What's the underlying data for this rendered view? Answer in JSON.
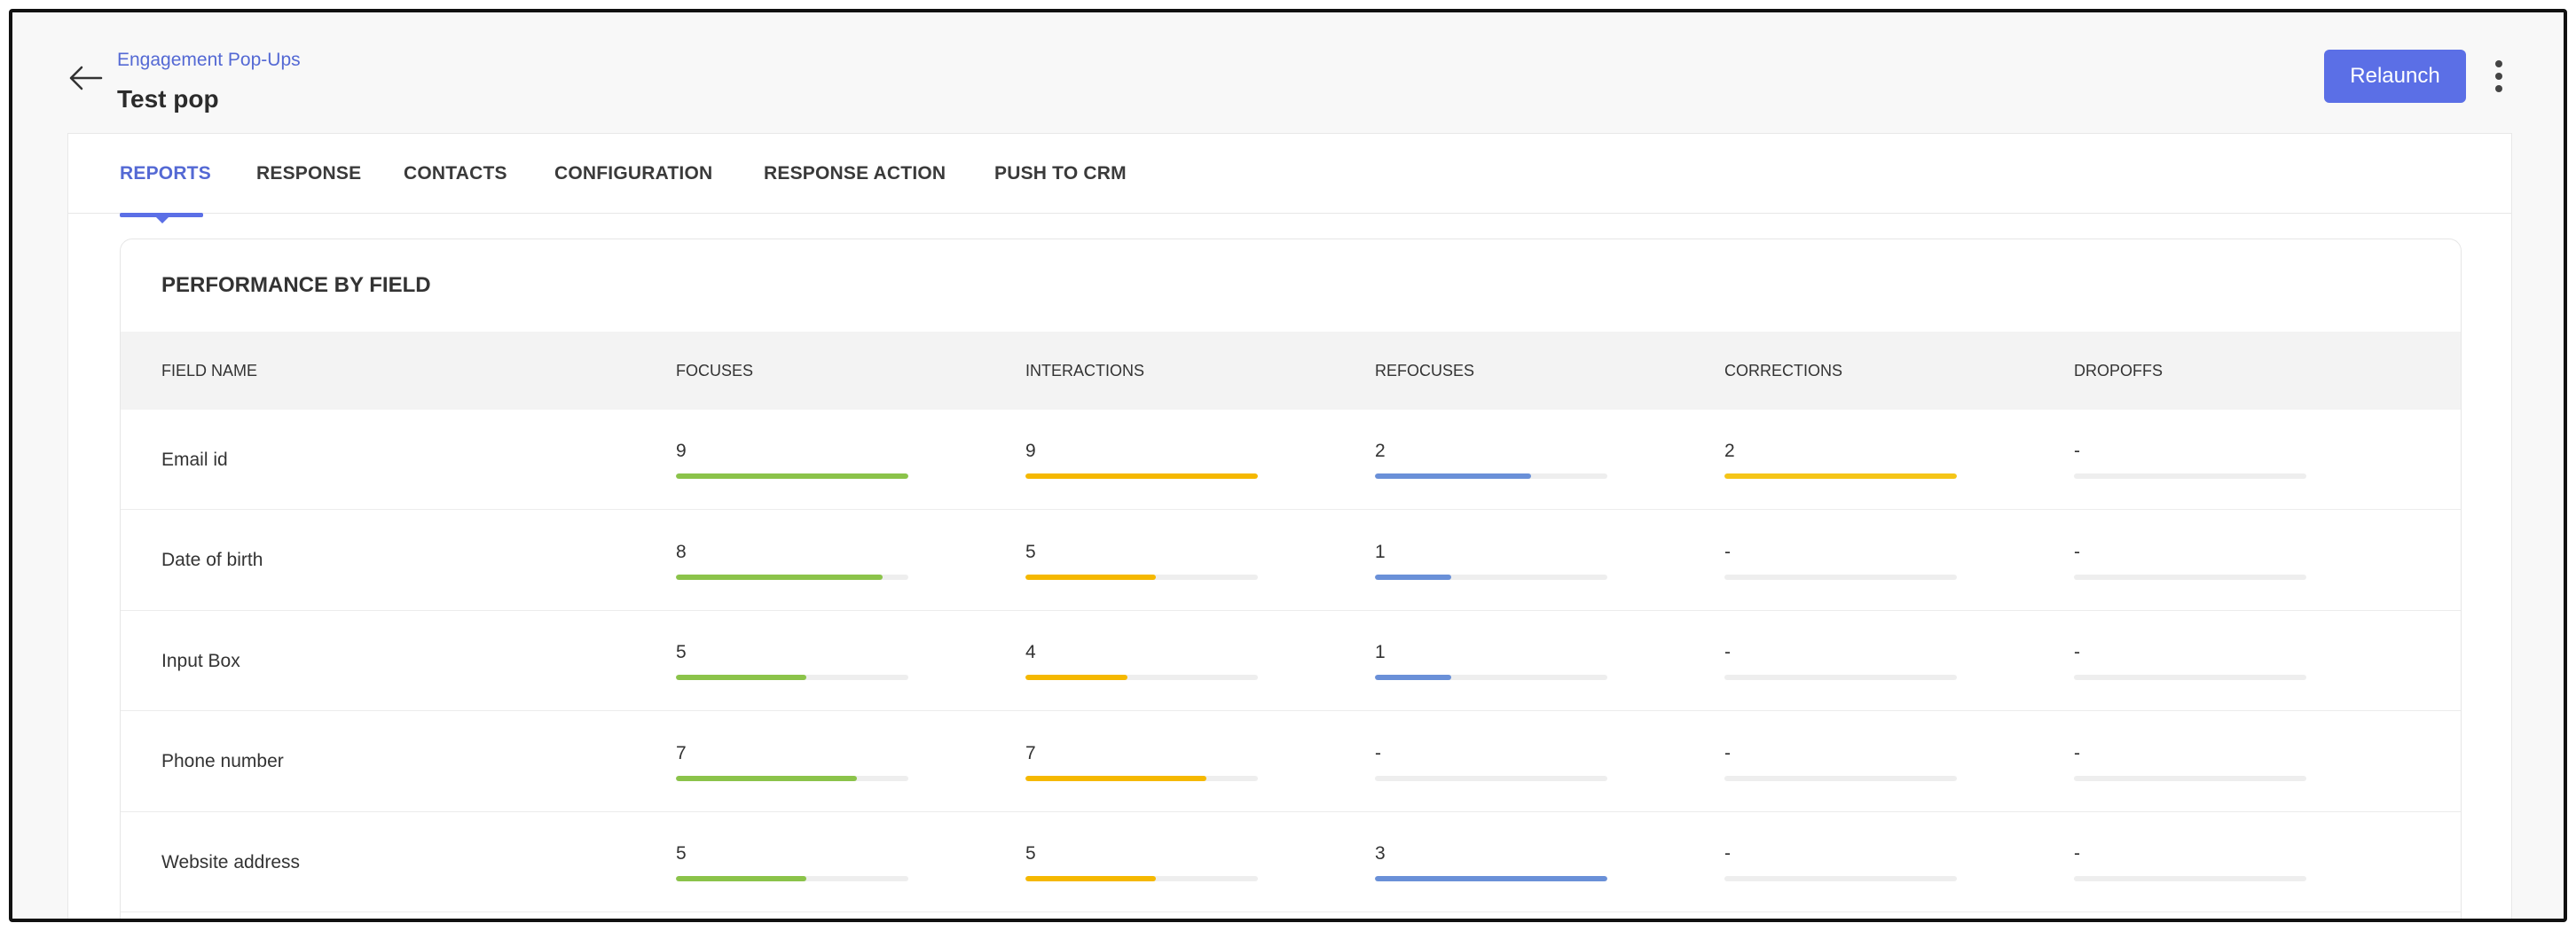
{
  "header": {
    "breadcrumb": "Engagement Pop-Ups",
    "title": "Test pop",
    "relaunch_label": "Relaunch"
  },
  "tabs": [
    {
      "label": "REPORTS",
      "active": true
    },
    {
      "label": "RESPONSE"
    },
    {
      "label": "CONTACTS"
    },
    {
      "label": "CONFIGURATION"
    },
    {
      "label": "RESPONSE ACTION"
    },
    {
      "label": "PUSH TO CRM"
    }
  ],
  "card": {
    "title": "PERFORMANCE BY FIELD",
    "columns": [
      "FIELD NAME",
      "FOCUSES",
      "INTERACTIONS",
      "REFOCUSES",
      "CORRECTIONS",
      "DROPOFFS"
    ]
  },
  "colors": {
    "focuses": "#8bc34a",
    "interactions": "#f5b800",
    "refocuses": "#6a90d8",
    "corrections": "#f5c518",
    "dropoffs": "#cccccc",
    "accent": "#5b6fe6"
  },
  "rows": [
    {
      "name": "Email id",
      "values": [
        "9",
        "9",
        "2",
        "2",
        "-"
      ],
      "fill": [
        1.0,
        1.0,
        0.67,
        1.0,
        0
      ]
    },
    {
      "name": "Date of birth",
      "values": [
        "8",
        "5",
        "1",
        "-",
        "-"
      ],
      "fill": [
        0.89,
        0.56,
        0.33,
        0,
        0
      ]
    },
    {
      "name": "Input Box",
      "values": [
        "5",
        "4",
        "1",
        "-",
        "-"
      ],
      "fill": [
        0.56,
        0.44,
        0.33,
        0,
        0
      ]
    },
    {
      "name": "Phone number",
      "values": [
        "7",
        "7",
        "-",
        "-",
        "-"
      ],
      "fill": [
        0.78,
        0.78,
        0,
        0,
        0
      ]
    },
    {
      "name": "Website address",
      "values": [
        "5",
        "5",
        "3",
        "-",
        "-"
      ],
      "fill": [
        0.56,
        0.56,
        1.0,
        0,
        0
      ]
    }
  ]
}
